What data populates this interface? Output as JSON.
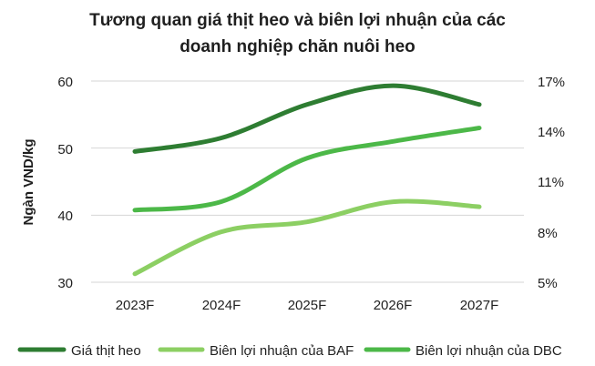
{
  "chart_data": {
    "type": "line",
    "title_lines": [
      "Tương quan giá thịt heo và biên lợi nhuận của các",
      "doanh nghiệp chăn nuôi heo"
    ],
    "ylabel": "Ngàn VND/kg",
    "categories": [
      "2023F",
      "2024F",
      "2025F",
      "2026F",
      "2027F"
    ],
    "y_left": {
      "min": 30,
      "max": 60,
      "ticks": [
        "60",
        "50",
        "40",
        "30"
      ]
    },
    "y_right": {
      "min": 0.05,
      "max": 0.17,
      "ticks": [
        "17%",
        "14%",
        "11%",
        "8%",
        "5%"
      ]
    },
    "grid": true,
    "legend_position": "bottom",
    "series": [
      {
        "name": "Giá thịt heo",
        "axis": "left",
        "color": "#2e7d32",
        "values": [
          49.5,
          51.5,
          56.5,
          59.3,
          56.5
        ]
      },
      {
        "name": "Biên lợi nhuận của BAF",
        "axis": "right",
        "color": "#8ccf63",
        "values": [
          0.055,
          0.08,
          0.086,
          0.098,
          0.095
        ]
      },
      {
        "name": "Biên lợi nhuận của DBC",
        "axis": "right",
        "color": "#4cb848",
        "values": [
          0.093,
          0.098,
          0.124,
          0.134,
          0.142
        ]
      }
    ]
  }
}
